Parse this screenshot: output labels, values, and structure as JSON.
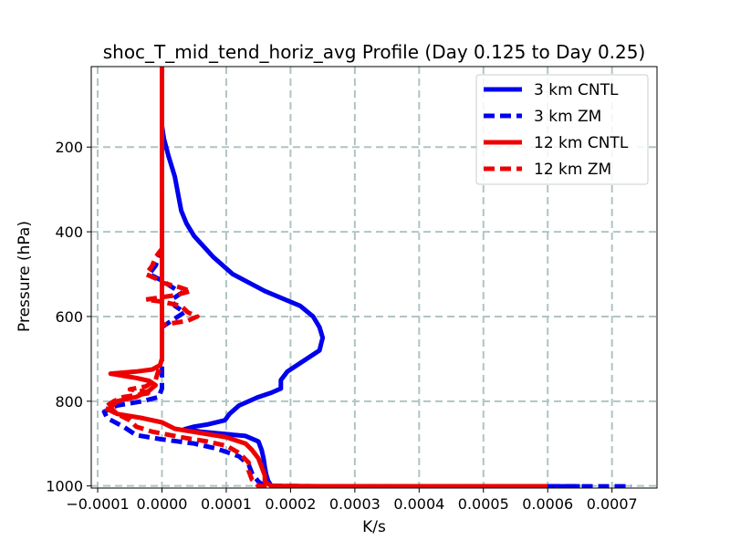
{
  "chart_data": {
    "type": "line",
    "title": "shoc_T_mid_tend_horiz_avg Profile (Day 0.125 to Day 0.25)",
    "xlabel": "K/s",
    "ylabel": "Pressure (hPa)",
    "xlim": [
      -0.00011,
      0.00077
    ],
    "ylim": [
      1005,
      10
    ],
    "y_inverted": true,
    "grid": true,
    "x_ticks": [
      -0.0001,
      0.0,
      0.0001,
      0.0002,
      0.0003,
      0.0004,
      0.0005,
      0.0006,
      0.0007
    ],
    "x_tick_labels": [
      "−0.0001",
      "0.0000",
      "0.0001",
      "0.0002",
      "0.0003",
      "0.0004",
      "0.0005",
      "0.0006",
      "0.0007"
    ],
    "y_ticks": [
      200,
      400,
      600,
      800,
      1000
    ],
    "y_tick_labels": [
      "200",
      "400",
      "600",
      "800",
      "1000"
    ],
    "legend_position": "top-right",
    "series": [
      {
        "name": "3 km CNTL",
        "color": "#0000ee",
        "dash": "solid",
        "points": [
          [
            0.0,
            10
          ],
          [
            0.0,
            120
          ],
          [
            0.0,
            150
          ],
          [
            3e-06,
            180
          ],
          [
            1e-05,
            220
          ],
          [
            2e-05,
            270
          ],
          [
            2.5e-05,
            310
          ],
          [
            3e-05,
            350
          ],
          [
            3.8e-05,
            380
          ],
          [
            5e-05,
            410
          ],
          [
            8e-05,
            460
          ],
          [
            0.00011,
            500
          ],
          [
            0.00016,
            540
          ],
          [
            0.000215,
            575
          ],
          [
            0.000235,
            600
          ],
          [
            0.000245,
            625
          ],
          [
            0.00025,
            650
          ],
          [
            0.000245,
            680
          ],
          [
            0.000215,
            710
          ],
          [
            0.000195,
            730
          ],
          [
            0.000185,
            750
          ],
          [
            0.000185,
            770
          ],
          [
            0.00017,
            780
          ],
          [
            0.00015,
            790
          ],
          [
            0.00012,
            810
          ],
          [
            0.000105,
            830
          ],
          [
            9.8e-05,
            845
          ],
          [
            7e-05,
            855
          ],
          [
            5e-05,
            860
          ],
          [
            3.5e-05,
            866
          ],
          [
            6e-05,
            872
          ],
          [
            0.00013,
            882
          ],
          [
            0.00015,
            895
          ],
          [
            0.000155,
            915
          ],
          [
            0.000158,
            935
          ],
          [
            0.00016,
            955
          ],
          [
            0.000162,
            972
          ],
          [
            0.000165,
            988
          ],
          [
            0.00017,
            1000
          ],
          [
            0.00025,
            1001
          ],
          [
            0.0004,
            1001
          ],
          [
            0.00065,
            1001
          ]
        ]
      },
      {
        "name": "3 km ZM",
        "color": "#0000ee",
        "dash": "dashed",
        "points": [
          [
            0.0,
            10
          ],
          [
            0.0,
            440
          ],
          [
            -5e-06,
            460
          ],
          [
            -1e-05,
            480
          ],
          [
            -2e-05,
            500
          ],
          [
            0.0,
            515
          ],
          [
            1.5e-05,
            530
          ],
          [
            3e-05,
            545
          ],
          [
            1.5e-05,
            560
          ],
          [
            2e-05,
            575
          ],
          [
            3.5e-05,
            590
          ],
          [
            1.5e-05,
            610
          ],
          [
            0.0,
            625
          ],
          [
            0.0,
            700
          ],
          [
            0.0,
            770
          ],
          [
            -5e-06,
            790
          ],
          [
            -3e-05,
            800
          ],
          [
            -7e-05,
            810
          ],
          [
            -9e-05,
            825
          ],
          [
            -8.5e-05,
            840
          ],
          [
            -6e-05,
            860
          ],
          [
            -4e-05,
            880
          ],
          [
            0.0,
            890
          ],
          [
            5e-05,
            900
          ],
          [
            8.5e-05,
            912
          ],
          [
            0.00012,
            930
          ],
          [
            0.000135,
            950
          ],
          [
            0.00014,
            970
          ],
          [
            0.00015,
            990
          ],
          [
            0.00016,
            1000
          ],
          [
            0.00025,
            1001
          ],
          [
            0.0005,
            1001
          ],
          [
            0.00073,
            1001
          ]
        ]
      },
      {
        "name": "12 km CNTL",
        "color": "#ee0000",
        "dash": "solid",
        "points": [
          [
            0.0,
            10
          ],
          [
            0.0,
            200
          ],
          [
            0.0,
            400
          ],
          [
            0.0,
            600
          ],
          [
            0.0,
            700
          ],
          [
            -3e-06,
            715
          ],
          [
            -1.5e-05,
            725
          ],
          [
            -4e-05,
            730
          ],
          [
            -8e-05,
            735
          ],
          [
            -6e-05,
            740
          ],
          [
            -4e-05,
            745
          ],
          [
            -2e-05,
            752
          ],
          [
            -1e-05,
            762
          ],
          [
            -2e-05,
            775
          ],
          [
            -4e-05,
            790
          ],
          [
            -7e-05,
            800
          ],
          [
            -8e-05,
            815
          ],
          [
            -7e-05,
            830
          ],
          [
            -3e-05,
            840
          ],
          [
            0.0,
            850
          ],
          [
            2e-05,
            865
          ],
          [
            6e-05,
            875
          ],
          [
            0.0001,
            885
          ],
          [
            0.00013,
            900
          ],
          [
            0.00014,
            915
          ],
          [
            0.00015,
            935
          ],
          [
            0.000155,
            955
          ],
          [
            0.00016,
            975
          ],
          [
            0.00016,
            990
          ],
          [
            0.00017,
            1000
          ],
          [
            0.0003,
            1001
          ],
          [
            0.00045,
            1001
          ],
          [
            0.0006,
            1001
          ]
        ]
      },
      {
        "name": "12 km ZM",
        "color": "#ee0000",
        "dash": "dashed",
        "points": [
          [
            0.0,
            10
          ],
          [
            0.0,
            440
          ],
          [
            -1e-05,
            460
          ],
          [
            -1.5e-05,
            480
          ],
          [
            -2.5e-05,
            500
          ],
          [
            -1e-05,
            510
          ],
          [
            0.0,
            520
          ],
          [
            2.5e-05,
            530
          ],
          [
            4.5e-05,
            540
          ],
          [
            2e-05,
            550
          ],
          [
            -2.5e-05,
            560
          ],
          [
            0.0,
            565
          ],
          [
            3e-05,
            575
          ],
          [
            4e-05,
            590
          ],
          [
            5.5e-05,
            600
          ],
          [
            4e-05,
            610
          ],
          [
            0.0,
            620
          ],
          [
            0.0,
            700
          ],
          [
            -1e-05,
            750
          ],
          [
            -2.5e-05,
            765
          ],
          [
            -5e-05,
            772
          ],
          [
            -1.5e-05,
            780
          ],
          [
            -6e-05,
            790
          ],
          [
            -7.5e-05,
            800
          ],
          [
            -9e-05,
            815
          ],
          [
            -7e-05,
            830
          ],
          [
            -5e-05,
            845
          ],
          [
            -4e-05,
            860
          ],
          [
            -1.5e-05,
            872
          ],
          [
            3e-05,
            885
          ],
          [
            7e-05,
            895
          ],
          [
            0.0001,
            905
          ],
          [
            0.00012,
            922
          ],
          [
            0.000135,
            945
          ],
          [
            0.000135,
            965
          ],
          [
            0.00014,
            985
          ],
          [
            0.00015,
            1000
          ],
          [
            0.0003,
            1001
          ],
          [
            0.00045,
            1001
          ],
          [
            0.0006,
            1001
          ]
        ]
      }
    ]
  }
}
